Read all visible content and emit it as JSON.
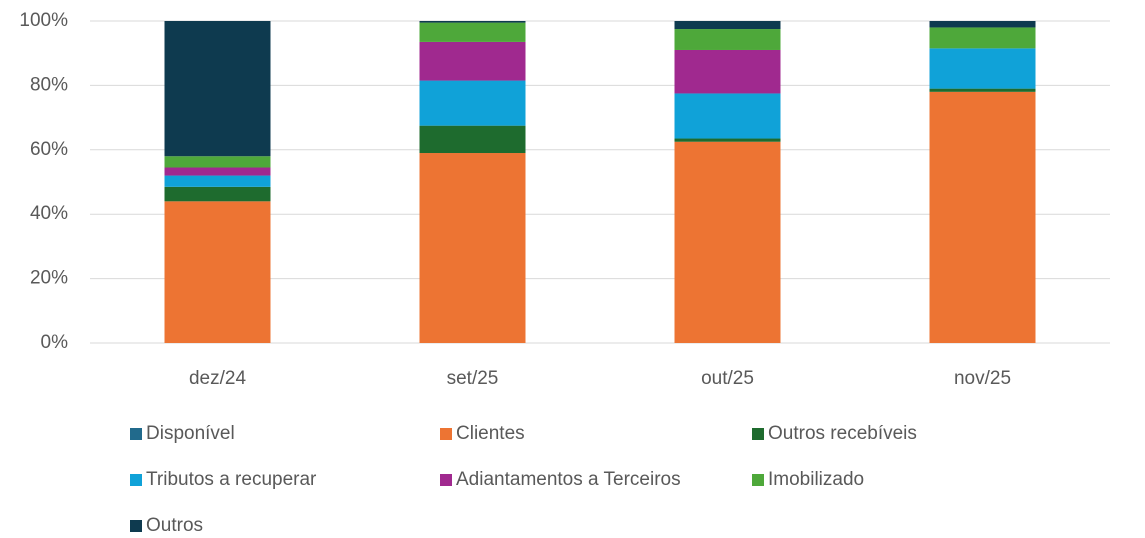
{
  "chart_data": {
    "type": "stacked_bar",
    "categories": [
      "dez/24",
      "set/25",
      "out/25",
      "nov/25"
    ],
    "series": [
      {
        "name": "Disponível",
        "color": "#216a8c",
        "values": [
          0,
          0,
          0,
          0
        ]
      },
      {
        "name": "Clientes",
        "color": "#ed7433",
        "values": [
          44,
          59,
          62.5,
          78
        ]
      },
      {
        "name": "Outros recebíveis",
        "color": "#1e6b2e",
        "values": [
          4.5,
          8.5,
          1,
          1
        ]
      },
      {
        "name": "Tributos a recuperar",
        "color": "#10a2d8",
        "values": [
          3.5,
          14,
          14,
          12.5
        ]
      },
      {
        "name": "Adiantamentos a Terceiros",
        "color": "#a0298f",
        "values": [
          2.5,
          12,
          13.5,
          0
        ]
      },
      {
        "name": "Imobilizado",
        "color": "#4ea83a",
        "values": [
          3.5,
          6,
          6.5,
          6.5
        ]
      },
      {
        "name": "Outros",
        "color": "#0e3a4f",
        "values": [
          42,
          0.5,
          2.5,
          2
        ]
      }
    ],
    "ylim": [
      0,
      100
    ],
    "yticks": [
      {
        "value": 0,
        "label": "0%"
      },
      {
        "value": 20,
        "label": "20%"
      },
      {
        "value": 40,
        "label": "40%"
      },
      {
        "value": 60,
        "label": "60%"
      },
      {
        "value": 80,
        "label": "80%"
      },
      {
        "value": 100,
        "label": "100%"
      }
    ],
    "grid": true,
    "legend": "bottom"
  }
}
